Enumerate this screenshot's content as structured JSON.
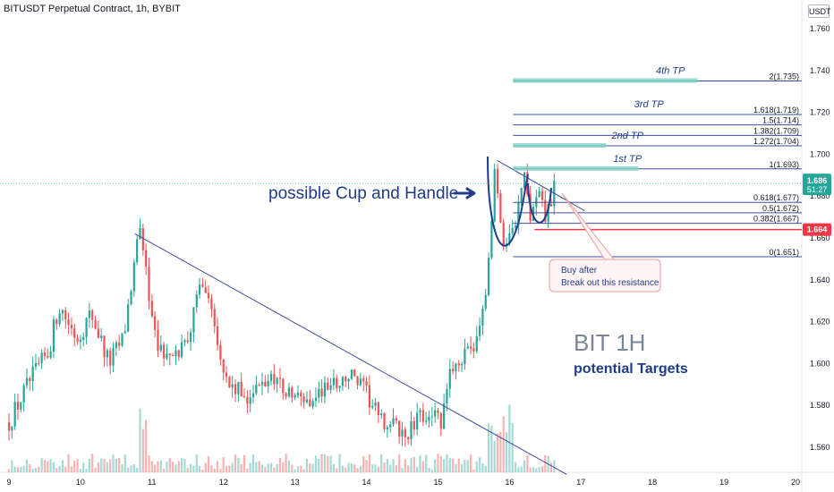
{
  "header": {
    "title": "BITUSDT Perpetual Contract, 1h, BYBIT",
    "currency": "USDT"
  },
  "colors": {
    "up": "#26a69a",
    "down": "#ef5350",
    "up_volume": "#a5d9d4",
    "down_volume": "#f7b3b1",
    "fib_line": "#3f4f9c",
    "tp_bar": "#7fd2c5",
    "label_blue": "#1f3c88",
    "note_border": "#ef9a9a",
    "note_bg": "#fff5f5",
    "price_live": "#26a69a",
    "price_level": "#f23645"
  },
  "chart_data": {
    "type": "candlestick",
    "title": "BITUSDT Perpetual Contract, 1h, BYBIT",
    "xlabel": "",
    "ylabel": "",
    "x_ticks": [
      "9",
      "10",
      "11",
      "12",
      "13",
      "14",
      "15",
      "16",
      "17",
      "18",
      "19",
      "20"
    ],
    "y_ticks": [
      "1.760",
      "1.740",
      "1.720",
      "1.700",
      "1.680",
      "1.660",
      "1.640",
      "1.620",
      "1.600",
      "1.580",
      "1.560"
    ],
    "ylim": [
      1.548,
      1.766
    ],
    "xlim": [
      9.0,
      20.0
    ],
    "grid": false,
    "price_path": [
      [
        9.0,
        1.572
      ],
      [
        9.3,
        1.592
      ],
      [
        9.55,
        1.605
      ],
      [
        9.7,
        1.628
      ],
      [
        9.95,
        1.612
      ],
      [
        10.15,
        1.624
      ],
      [
        10.4,
        1.6
      ],
      [
        10.6,
        1.612
      ],
      [
        10.82,
        1.662
      ],
      [
        10.92,
        1.645
      ],
      [
        11.05,
        1.61
      ],
      [
        11.3,
        1.6
      ],
      [
        11.55,
        1.618
      ],
      [
        11.7,
        1.642
      ],
      [
        11.85,
        1.625
      ],
      [
        12.05,
        1.59
      ],
      [
        12.3,
        1.584
      ],
      [
        12.5,
        1.588
      ],
      [
        12.7,
        1.595
      ],
      [
        12.9,
        1.585
      ],
      [
        13.2,
        1.582
      ],
      [
        13.5,
        1.59
      ],
      [
        13.8,
        1.594
      ],
      [
        14.0,
        1.585
      ],
      [
        14.2,
        1.572
      ],
      [
        14.4,
        1.57
      ],
      [
        14.55,
        1.565
      ],
      [
        14.7,
        1.572
      ],
      [
        14.9,
        1.578
      ],
      [
        15.05,
        1.57
      ],
      [
        15.2,
        1.6
      ],
      [
        15.45,
        1.604
      ],
      [
        15.65,
        1.625
      ],
      [
        15.8,
        1.696
      ],
      [
        15.9,
        1.654
      ],
      [
        16.0,
        1.666
      ],
      [
        16.1,
        1.67
      ],
      [
        16.2,
        1.69
      ],
      [
        16.3,
        1.668
      ],
      [
        16.4,
        1.681
      ],
      [
        16.5,
        1.669
      ],
      [
        16.65,
        1.686
      ]
    ],
    "current_price": 1.686,
    "countdown": "51:27",
    "marked_level": 1.664,
    "fib_levels": [
      {
        "label": "2(1.735)",
        "value": 1.735
      },
      {
        "label": "1.618(1.719)",
        "value": 1.719
      },
      {
        "label": "1.5(1.714)",
        "value": 1.714
      },
      {
        "label": "1.382(1.709)",
        "value": 1.709
      },
      {
        "label": "1.272(1.704)",
        "value": 1.704
      },
      {
        "label": "1(1.693)",
        "value": 1.693
      },
      {
        "label": "0.618(1.677)",
        "value": 1.677
      },
      {
        "label": "0.5(1.672)",
        "value": 1.672
      },
      {
        "label": "0.382(1.667)",
        "value": 1.667
      },
      {
        "label": "0(1.651)",
        "value": 1.651
      }
    ],
    "targets": [
      {
        "label": "4th TP",
        "value": 1.735
      },
      {
        "label": "3rd TP",
        "value": 1.719
      },
      {
        "label": "2nd TP",
        "value": 1.704
      },
      {
        "label": "1st TP",
        "value": 1.693
      }
    ],
    "annotations": {
      "pattern": "possible Cup and Handle",
      "note_line1": "Buy after",
      "note_line2": "Break out this resistance",
      "heading": "BIT 1H",
      "subheading": "potential Targets"
    }
  }
}
